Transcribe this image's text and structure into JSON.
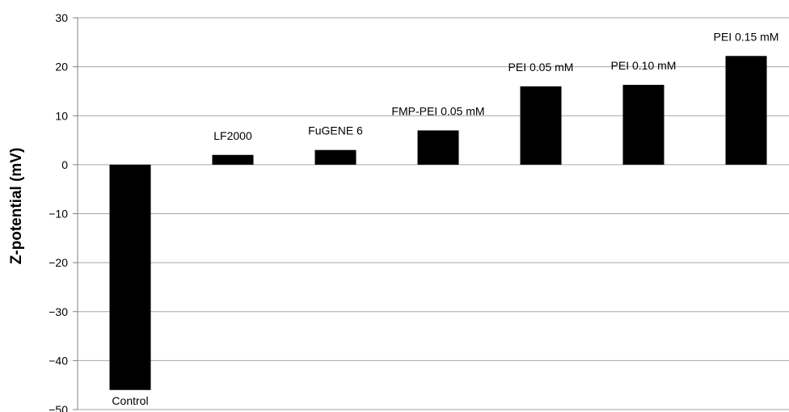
{
  "chart_data": {
    "type": "bar",
    "title": "",
    "xlabel": "",
    "ylabel": "Z-potential (mV)",
    "ylim": [
      -50,
      30
    ],
    "yticks": [
      30,
      20,
      10,
      0,
      -10,
      -20,
      -30,
      -40,
      -50
    ],
    "ytick_labels": [
      "30",
      "20",
      "10",
      "0",
      "−10",
      "−20",
      "−30",
      "−40",
      "−50"
    ],
    "grid": true,
    "legend": "none",
    "categories": [
      "Control",
      "LF2000",
      "FuGENE 6",
      "FMP-PEI 0.05 mM",
      "PEI 0.05 mM",
      "PEI 0.10 mM",
      "PEI 0.15 mM"
    ],
    "values": [
      -46,
      2,
      3,
      7,
      16,
      16.3,
      22.2
    ],
    "colors": {
      "bar": "#000000",
      "grid": "#a6a6a6",
      "axis": "#808080",
      "text": "#000000"
    }
  }
}
